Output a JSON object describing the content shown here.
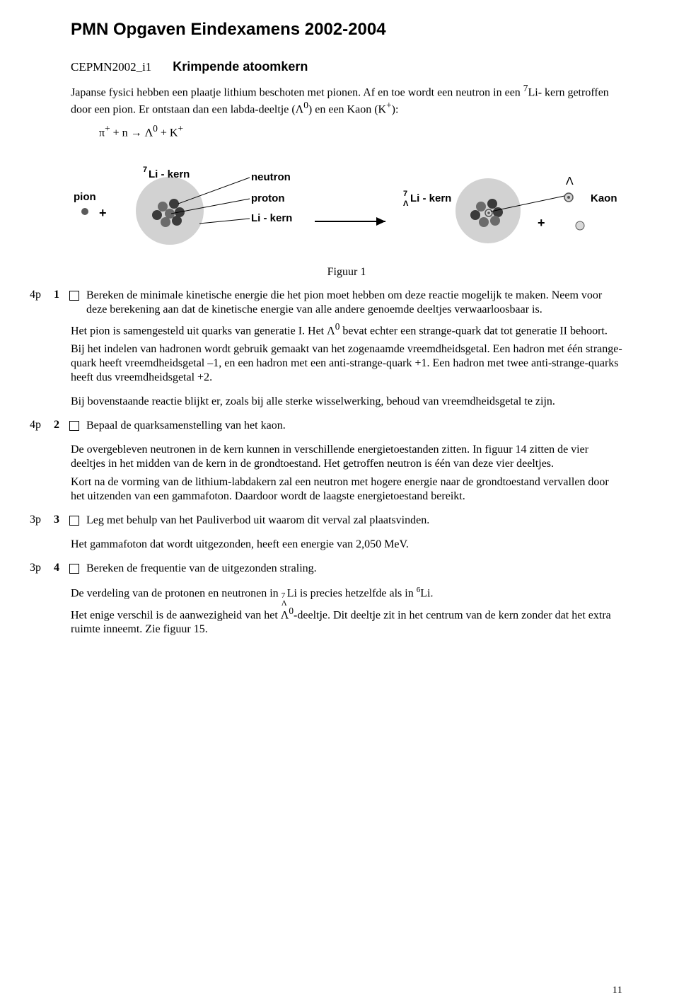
{
  "title": "PMN Opgaven Eindexamens 2002-2004",
  "heading": {
    "code": "CEPMN2002_i1",
    "subtitle": "Krimpende atoomkern"
  },
  "intro": {
    "p1_a": "Japanse fysici hebben een plaatje lithium beschoten met pionen. Af en toe wordt een neutron in een ",
    "p1_b": "Li- kern getroffen door een pion. Er ontstaan dan een labda-deeltje (Λ",
    "p1_c": ") en een Kaon (K",
    "p1_d": "):",
    "li_sup": "7",
    "lambda_sup": "0",
    "kaon_sup": "+"
  },
  "equation": {
    "lhs_a": "π",
    "lhs_sup1": "+",
    "lhs_b": " + n  →  Λ",
    "lhs_sup2": "0",
    "lhs_c": " + K",
    "lhs_sup3": "+"
  },
  "figure": {
    "caption": "Figuur 1",
    "labels": {
      "pion": "pion",
      "plus_left": "+",
      "li7_kern": "Li - kern",
      "li7_sup": "7",
      "neutron": "neutron",
      "proton": "proton",
      "li_kern": "Li - kern",
      "li7l_sup": "7",
      "li7l_sub": "Λ",
      "li7l_text": "Li  - kern",
      "lambda": "Λ",
      "plus_right": "+",
      "kaon": "Kaon"
    },
    "colors": {
      "nucleus_fill": "#d2d2d2",
      "proton_fill": "#6b6b6b",
      "neutron_fill": "#3b3b3b",
      "pion_fill": "#5a5a5a",
      "lambda_fill": "#d2d2d2",
      "lambda_stroke": "#555555",
      "kaon_fill": "#d8d8d8",
      "arrow_stroke": "#000000",
      "label_color": "#000000"
    }
  },
  "questions": {
    "q1": {
      "pts": "4p",
      "num": "1",
      "text_a": "Bereken de minimale kinetische energie die het pion moet hebben om deze reactie mogelijk te maken",
      "text_b": ". Neem voor deze berekening aan dat de kinetische energie van alle andere genoemde deeltjes verwaarloosbaar is."
    },
    "q1_follow": {
      "p1": "Het pion is samengesteld uit quarks van generatie I. Het Λ",
      "p1_sup": "0",
      "p1b": " bevat echter een strange-quark dat tot generatie II behoort.",
      "p2": "Bij het indelen van hadronen wordt gebruik gemaakt van het zogenaamde vreemdheidsgetal. Een hadron met één strange-quark heeft vreemdheidsgetal –1, en een hadron met een anti-strange-quark +1. Een hadron met twee anti-strange-quarks heeft dus vreemdheidsgetal +2.",
      "p3": "Bij bovenstaande reactie blijkt er, zoals bij alle sterke wisselwerking, behoud van vreemdheidsgetal te zijn."
    },
    "q2": {
      "pts": "4p",
      "num": "2",
      "text": "Bepaal de quarksamenstelling van het kaon."
    },
    "q2_follow": {
      "p1": "De overgebleven neutronen in de kern kunnen in verschillende energietoestanden zitten. In figuur 14 zitten de vier deeltjes in het midden van de kern in de grondtoestand. Het getroffen neutron is één van deze vier deeltjes.",
      "p2": "Kort na de vorming van de lithium-labdakern zal een neutron met hogere energie naar de grondtoestand vervallen door het uitzenden van een gammafoton. Daardoor wordt de laagste energietoestand bereikt."
    },
    "q3": {
      "pts": "3p",
      "num": "3",
      "text": "Leg met behulp van het Pauliverbod uit waarom dit verval zal plaatsvinden."
    },
    "q3_follow": {
      "p1": "Het gammafoton dat wordt uitgezonden, heeft een energie van 2,050 MeV."
    },
    "q4": {
      "pts": "3p",
      "num": "4",
      "text": "Bereken de frequentie van de uitgezonden straling."
    },
    "q4_follow": {
      "pre": "De verdeling van de protonen en neutronen in ",
      "sym_sup": "7",
      "sym_sub": "Λ",
      "sym": "Li",
      "mid": " is precies hetzelfde als in ",
      "sym2_sup": "6",
      "sym2": "Li",
      "post": ".",
      "p2a": "Het enige verschil is de aanwezigheid van het Λ",
      "p2_sup": "0",
      "p2b": "-deeltje. Dit deeltje zit in het centrum van de kern zonder dat het extra ruimte inneemt. Zie figuur 15."
    }
  },
  "pagenum": "11"
}
